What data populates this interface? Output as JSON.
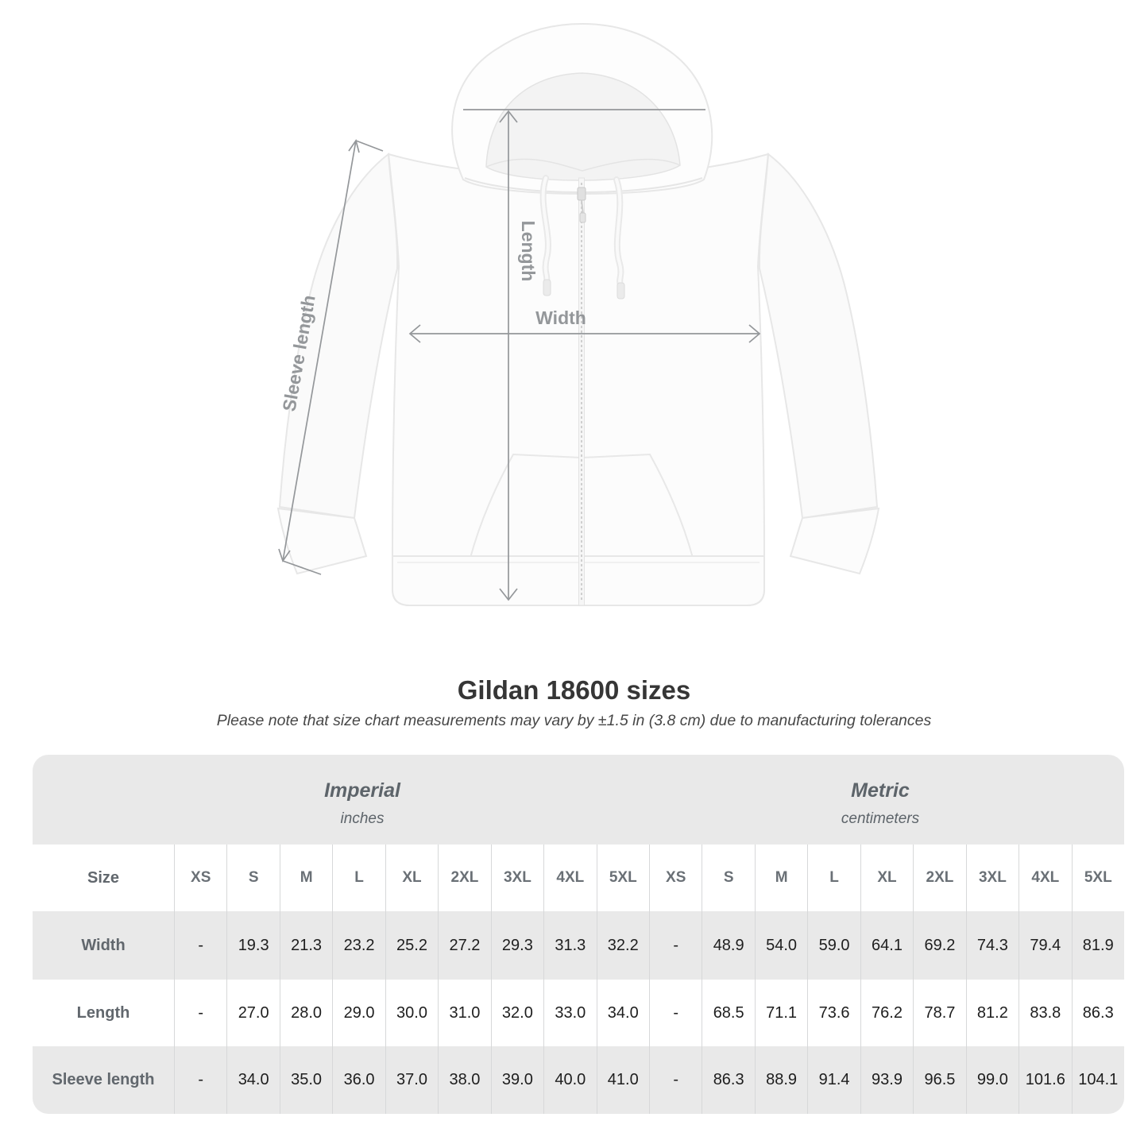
{
  "diagram": {
    "length_label": "Length",
    "width_label": "Width",
    "sleeve_label": "Sleeve length",
    "measure_color": "#94979a"
  },
  "heading": {
    "title": "Gildan 18600 sizes",
    "subtitle": "Please note that size chart measurements may vary by ±1.5 in (3.8 cm) due to manufacturing tolerances"
  },
  "table": {
    "imperial_group": {
      "name": "Imperial",
      "unit": "inches"
    },
    "metric_group": {
      "name": "Metric",
      "unit": "centimeters"
    },
    "size_header": "Size",
    "sizes": [
      "XS",
      "S",
      "M",
      "L",
      "XL",
      "2XL",
      "3XL",
      "4XL",
      "5XL"
    ],
    "rows": [
      {
        "label": "Width",
        "imperial": [
          "-",
          "19.3",
          "21.3",
          "23.2",
          "25.2",
          "27.2",
          "29.3",
          "31.3",
          "32.2"
        ],
        "metric": [
          "-",
          "48.9",
          "54.0",
          "59.0",
          "64.1",
          "69.2",
          "74.3",
          "79.4",
          "81.9"
        ]
      },
      {
        "label": "Length",
        "imperial": [
          "-",
          "27.0",
          "28.0",
          "29.0",
          "30.0",
          "31.0",
          "32.0",
          "33.0",
          "34.0"
        ],
        "metric": [
          "-",
          "68.5",
          "71.1",
          "73.6",
          "76.2",
          "78.7",
          "81.2",
          "83.8",
          "86.3"
        ]
      },
      {
        "label": "Sleeve length",
        "imperial": [
          "-",
          "34.0",
          "35.0",
          "36.0",
          "37.0",
          "38.0",
          "39.0",
          "40.0",
          "41.0"
        ],
        "metric": [
          "-",
          "86.3",
          "88.9",
          "91.4",
          "93.9",
          "96.5",
          "99.0",
          "101.6",
          "104.1"
        ]
      }
    ]
  },
  "colors": {
    "row_alt_bg": "#e9e9e9",
    "separator": "#d7d8d9",
    "label_text": "#61676d",
    "value_text": "#1e1e1e"
  }
}
